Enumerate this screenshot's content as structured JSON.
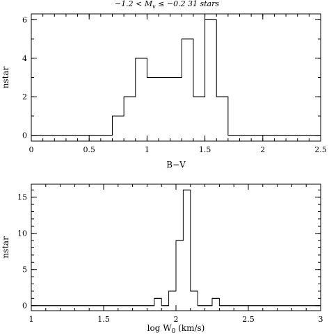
{
  "page_title": "−1.2 < M",
  "title_sub": "v",
  "title_rest": " ≤ −0.2   31 stars",
  "chart_data": [
    {
      "type": "histogram",
      "xlabel": "B−V",
      "ylabel": "nstar",
      "xlim": [
        0,
        2.5
      ],
      "ylim": [
        -0.3,
        6.3
      ],
      "xticks": [
        0,
        0.5,
        1,
        1.5,
        2,
        2.5
      ],
      "xtick_labels": [
        "0",
        "0.5",
        "1",
        "1.5",
        "2",
        "2.5"
      ],
      "yticks": [
        0,
        2,
        4,
        6
      ],
      "ytick_labels": [
        "0",
        "2",
        "4",
        "6"
      ],
      "bins": [
        [
          0.0,
          0.7,
          0
        ],
        [
          0.7,
          0.8,
          1
        ],
        [
          0.8,
          0.9,
          2
        ],
        [
          0.9,
          1.0,
          4
        ],
        [
          1.0,
          1.3,
          3
        ],
        [
          1.3,
          1.4,
          5
        ],
        [
          1.4,
          1.5,
          2
        ],
        [
          1.5,
          1.6,
          6
        ],
        [
          1.6,
          1.7,
          2
        ],
        [
          1.7,
          2.5,
          0
        ]
      ]
    },
    {
      "type": "histogram",
      "xlabel_pre": "log W",
      "xlabel_sub": "0",
      "xlabel_post": " (km/s)",
      "ylabel": "nstar",
      "xlim": [
        1,
        3
      ],
      "ylim": [
        -0.7,
        16.8
      ],
      "xticks": [
        1,
        1.5,
        2,
        2.5,
        3
      ],
      "xtick_labels": [
        "1",
        "1.5",
        "2",
        "2.5",
        "3"
      ],
      "yticks": [
        0,
        5,
        10,
        15
      ],
      "ytick_labels": [
        "0",
        "5",
        "10",
        "15"
      ],
      "bins": [
        [
          1.0,
          1.85,
          0
        ],
        [
          1.85,
          1.9,
          1
        ],
        [
          1.9,
          1.95,
          0
        ],
        [
          1.95,
          2.0,
          2
        ],
        [
          2.0,
          2.05,
          9
        ],
        [
          2.05,
          2.1,
          16
        ],
        [
          2.1,
          2.15,
          2
        ],
        [
          2.15,
          2.25,
          0
        ],
        [
          2.25,
          2.3,
          1
        ],
        [
          2.3,
          3.0,
          0
        ]
      ]
    }
  ]
}
